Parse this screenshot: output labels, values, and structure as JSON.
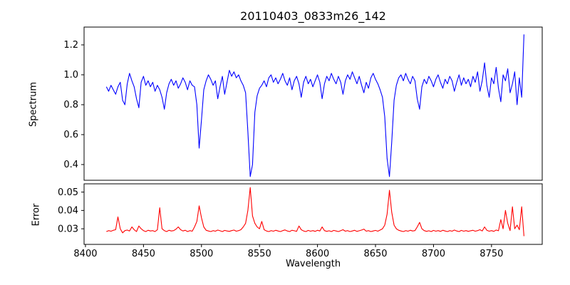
{
  "chart_data": [
    {
      "type": "line",
      "panel": "spectrum",
      "title": "20110403_0833m26_142",
      "ylabel": "Spectrum",
      "xlim": [
        8398.8,
        8793.7
      ],
      "ylim": [
        0.295,
        1.319
      ],
      "yticks": [
        0.4,
        0.6,
        0.8,
        1.0,
        1.2
      ],
      "ytick_labels": [
        "0.4",
        "0.6",
        "0.8",
        "1.0",
        "1.2"
      ],
      "grid": false,
      "legend": "none",
      "series": [
        {
          "name": "spectrum",
          "color": "#0000ff",
          "x_start": 8418,
          "x_step": 2,
          "values": [
            0.92,
            0.89,
            0.93,
            0.9,
            0.87,
            0.92,
            0.95,
            0.83,
            0.8,
            0.94,
            1.01,
            0.96,
            0.92,
            0.84,
            0.78,
            0.95,
            0.99,
            0.93,
            0.96,
            0.92,
            0.95,
            0.89,
            0.93,
            0.9,
            0.85,
            0.77,
            0.88,
            0.94,
            0.97,
            0.93,
            0.96,
            0.91,
            0.94,
            0.98,
            0.95,
            0.9,
            0.96,
            0.93,
            0.92,
            0.8,
            0.51,
            0.7,
            0.9,
            0.96,
            1.0,
            0.97,
            0.93,
            0.96,
            0.84,
            0.92,
            0.99,
            0.87,
            0.95,
            1.03,
            0.99,
            1.02,
            0.98,
            1.0,
            0.96,
            0.93,
            0.88,
            0.62,
            0.32,
            0.4,
            0.75,
            0.86,
            0.91,
            0.93,
            0.96,
            0.92,
            0.98,
            1.0,
            0.95,
            0.98,
            0.94,
            0.97,
            1.01,
            0.96,
            0.93,
            0.98,
            0.9,
            0.96,
            0.99,
            0.94,
            0.85,
            0.95,
            0.99,
            0.94,
            0.97,
            0.92,
            0.96,
            1.0,
            0.95,
            0.84,
            0.94,
            0.99,
            0.96,
            1.01,
            0.97,
            0.94,
            0.99,
            0.95,
            0.87,
            0.96,
            1.0,
            0.97,
            1.02,
            0.98,
            0.94,
            0.99,
            0.93,
            0.88,
            0.95,
            0.91,
            0.98,
            1.01,
            0.97,
            0.94,
            0.9,
            0.85,
            0.72,
            0.44,
            0.32,
            0.55,
            0.83,
            0.93,
            0.98,
            1.0,
            0.96,
            1.01,
            0.97,
            0.94,
            0.99,
            0.96,
            0.84,
            0.77,
            0.92,
            0.97,
            0.94,
            0.99,
            0.96,
            0.92,
            0.97,
            1.0,
            0.95,
            0.91,
            0.97,
            0.94,
            0.99,
            0.96,
            0.89,
            0.95,
            1.0,
            0.93,
            0.98,
            0.94,
            0.97,
            0.92,
            0.99,
            0.95,
            1.02,
            0.89,
            0.96,
            1.08,
            0.93,
            0.85,
            0.98,
            0.94,
            1.05,
            0.91,
            0.82,
            1.0,
            0.96,
            1.04,
            0.88,
            0.94,
            1.02,
            0.8,
            0.98,
            0.85,
            1.27
          ]
        }
      ]
    },
    {
      "type": "line",
      "panel": "error",
      "ylabel": "Error",
      "xlabel": "Wavelength",
      "xlim": [
        8398.8,
        8793.7
      ],
      "ylim": [
        0.0215,
        0.0545
      ],
      "yticks": [
        0.03,
        0.04,
        0.05
      ],
      "ytick_labels": [
        "0.03",
        "0.04",
        "0.05"
      ],
      "xticks": [
        8400,
        8450,
        8500,
        8550,
        8600,
        8650,
        8700,
        8750
      ],
      "xtick_labels": [
        "8400",
        "8450",
        "8500",
        "8550",
        "8600",
        "8650",
        "8700",
        "8750"
      ],
      "grid": false,
      "legend": "none",
      "series": [
        {
          "name": "error",
          "color": "#ff0000",
          "x_start": 8418,
          "x_step": 2,
          "values": [
            0.0285,
            0.029,
            0.0287,
            0.0292,
            0.0295,
            0.0365,
            0.03,
            0.0278,
            0.029,
            0.0293,
            0.0288,
            0.031,
            0.0295,
            0.0285,
            0.0315,
            0.03,
            0.029,
            0.0285,
            0.0292,
            0.0288,
            0.029,
            0.0285,
            0.0295,
            0.0415,
            0.03,
            0.029,
            0.0285,
            0.0292,
            0.0288,
            0.029,
            0.0298,
            0.031,
            0.0295,
            0.0288,
            0.0292,
            0.0285,
            0.029,
            0.0287,
            0.031,
            0.034,
            0.0425,
            0.036,
            0.031,
            0.0292,
            0.0288,
            0.0285,
            0.029,
            0.0287,
            0.0293,
            0.0289,
            0.0285,
            0.0291,
            0.0288,
            0.0286,
            0.029,
            0.0293,
            0.0287,
            0.029,
            0.0295,
            0.031,
            0.033,
            0.04,
            0.0525,
            0.037,
            0.033,
            0.031,
            0.03,
            0.034,
            0.0295,
            0.0288,
            0.0285,
            0.029,
            0.0287,
            0.0292,
            0.0288,
            0.0285,
            0.029,
            0.0294,
            0.0288,
            0.0285,
            0.0292,
            0.0289,
            0.0286,
            0.0315,
            0.0295,
            0.0288,
            0.0285,
            0.0291,
            0.0287,
            0.029,
            0.0286,
            0.0292,
            0.0288,
            0.031,
            0.029,
            0.0286,
            0.0289,
            0.0285,
            0.0291,
            0.0288,
            0.0285,
            0.029,
            0.0295,
            0.0287,
            0.029,
            0.0285,
            0.0288,
            0.0292,
            0.0286,
            0.0289,
            0.0293,
            0.0298,
            0.0287,
            0.029,
            0.0285,
            0.0288,
            0.0291,
            0.0287,
            0.0293,
            0.03,
            0.032,
            0.038,
            0.051,
            0.039,
            0.032,
            0.03,
            0.0292,
            0.0288,
            0.0285,
            0.029,
            0.0287,
            0.0292,
            0.0288,
            0.029,
            0.031,
            0.0335,
            0.03,
            0.029,
            0.0286,
            0.0289,
            0.0285,
            0.0291,
            0.0287,
            0.029,
            0.0286,
            0.0292,
            0.0288,
            0.0285,
            0.029,
            0.0287,
            0.0293,
            0.0288,
            0.0285,
            0.0291,
            0.0287,
            0.029,
            0.0286,
            0.0289,
            0.0292,
            0.0287,
            0.029,
            0.0295,
            0.0288,
            0.031,
            0.0292,
            0.0287,
            0.029,
            0.0286,
            0.0293,
            0.0289,
            0.035,
            0.03,
            0.04,
            0.033,
            0.029,
            0.042,
            0.03,
            0.032,
            0.0295,
            0.042,
            0.026
          ]
        }
      ]
    }
  ]
}
